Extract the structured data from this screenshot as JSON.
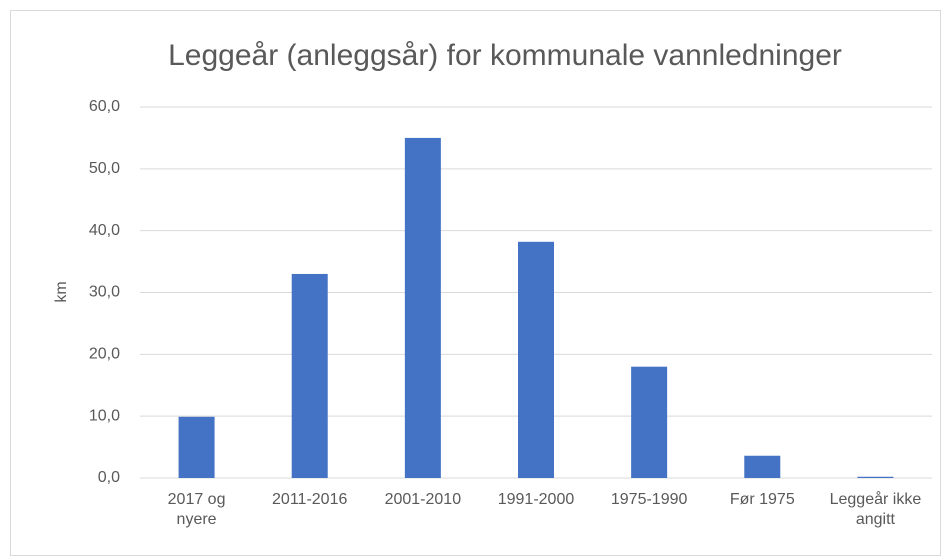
{
  "chart_data": {
    "type": "bar",
    "title": "Leggeår (anleggsår) for kommunale vannledninger",
    "ylabel": "km",
    "categories": [
      "2017 og nyere",
      "2011-2016",
      "2001-2010",
      "1991-2000",
      "1975-1990",
      "Før 1975",
      "Leggeår ikke angitt"
    ],
    "values": [
      9.9,
      33.0,
      55.0,
      38.2,
      18.0,
      3.6,
      0.2
    ],
    "color": "#4472c4",
    "ylim": [
      0,
      60
    ],
    "yticks": [
      {
        "value": 0,
        "label": "0,0"
      },
      {
        "value": 10,
        "label": "10,0"
      },
      {
        "value": 20,
        "label": "20,0"
      },
      {
        "value": 30,
        "label": "30,0"
      },
      {
        "value": 40,
        "label": "40,0"
      },
      {
        "value": 50,
        "label": "50,0"
      },
      {
        "value": 60,
        "label": "60,0"
      }
    ],
    "grid": true
  }
}
